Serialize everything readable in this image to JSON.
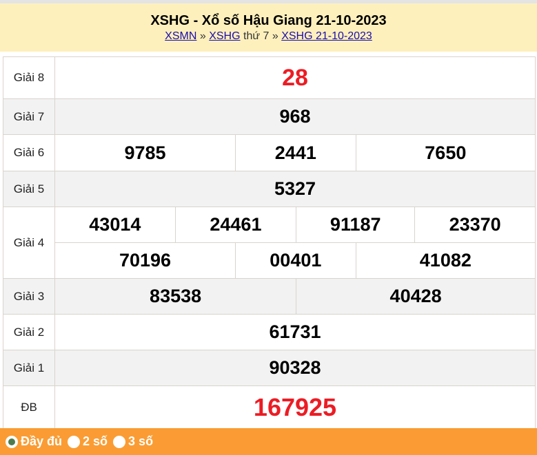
{
  "header": {
    "title": "XSHG - Xổ số Hậu Giang 21-10-2023",
    "crumb1": "XSMN",
    "sep1": " » ",
    "crumb2": "XSHG",
    "mid": " thứ 7 » ",
    "crumb3": "XSHG 21-10-2023"
  },
  "prizes": {
    "g8": {
      "label": "Giải 8",
      "values": [
        "28"
      ]
    },
    "g7": {
      "label": "Giải 7",
      "values": [
        "968"
      ]
    },
    "g6": {
      "label": "Giải 6",
      "values": [
        "9785",
        "2441",
        "7650"
      ]
    },
    "g5": {
      "label": "Giải 5",
      "values": [
        "5327"
      ]
    },
    "g4": {
      "label": "Giải 4",
      "values": [
        "43014",
        "24461",
        "91187",
        "23370",
        "70196",
        "00401",
        "41082"
      ]
    },
    "g3": {
      "label": "Giải 3",
      "values": [
        "83538",
        "40428"
      ]
    },
    "g2": {
      "label": "Giải 2",
      "values": [
        "61731"
      ]
    },
    "g1": {
      "label": "Giải 1",
      "values": [
        "90328"
      ]
    },
    "db": {
      "label": "ĐB",
      "values": [
        "167925"
      ]
    }
  },
  "footer": {
    "options": [
      "Đầy đủ",
      "2 số",
      "3 số"
    ],
    "selected": "Đầy đủ"
  },
  "colors": {
    "header_bg": "#fef0bd",
    "footer_bg": "#fa9c33",
    "highlight": "#ec1c24"
  }
}
